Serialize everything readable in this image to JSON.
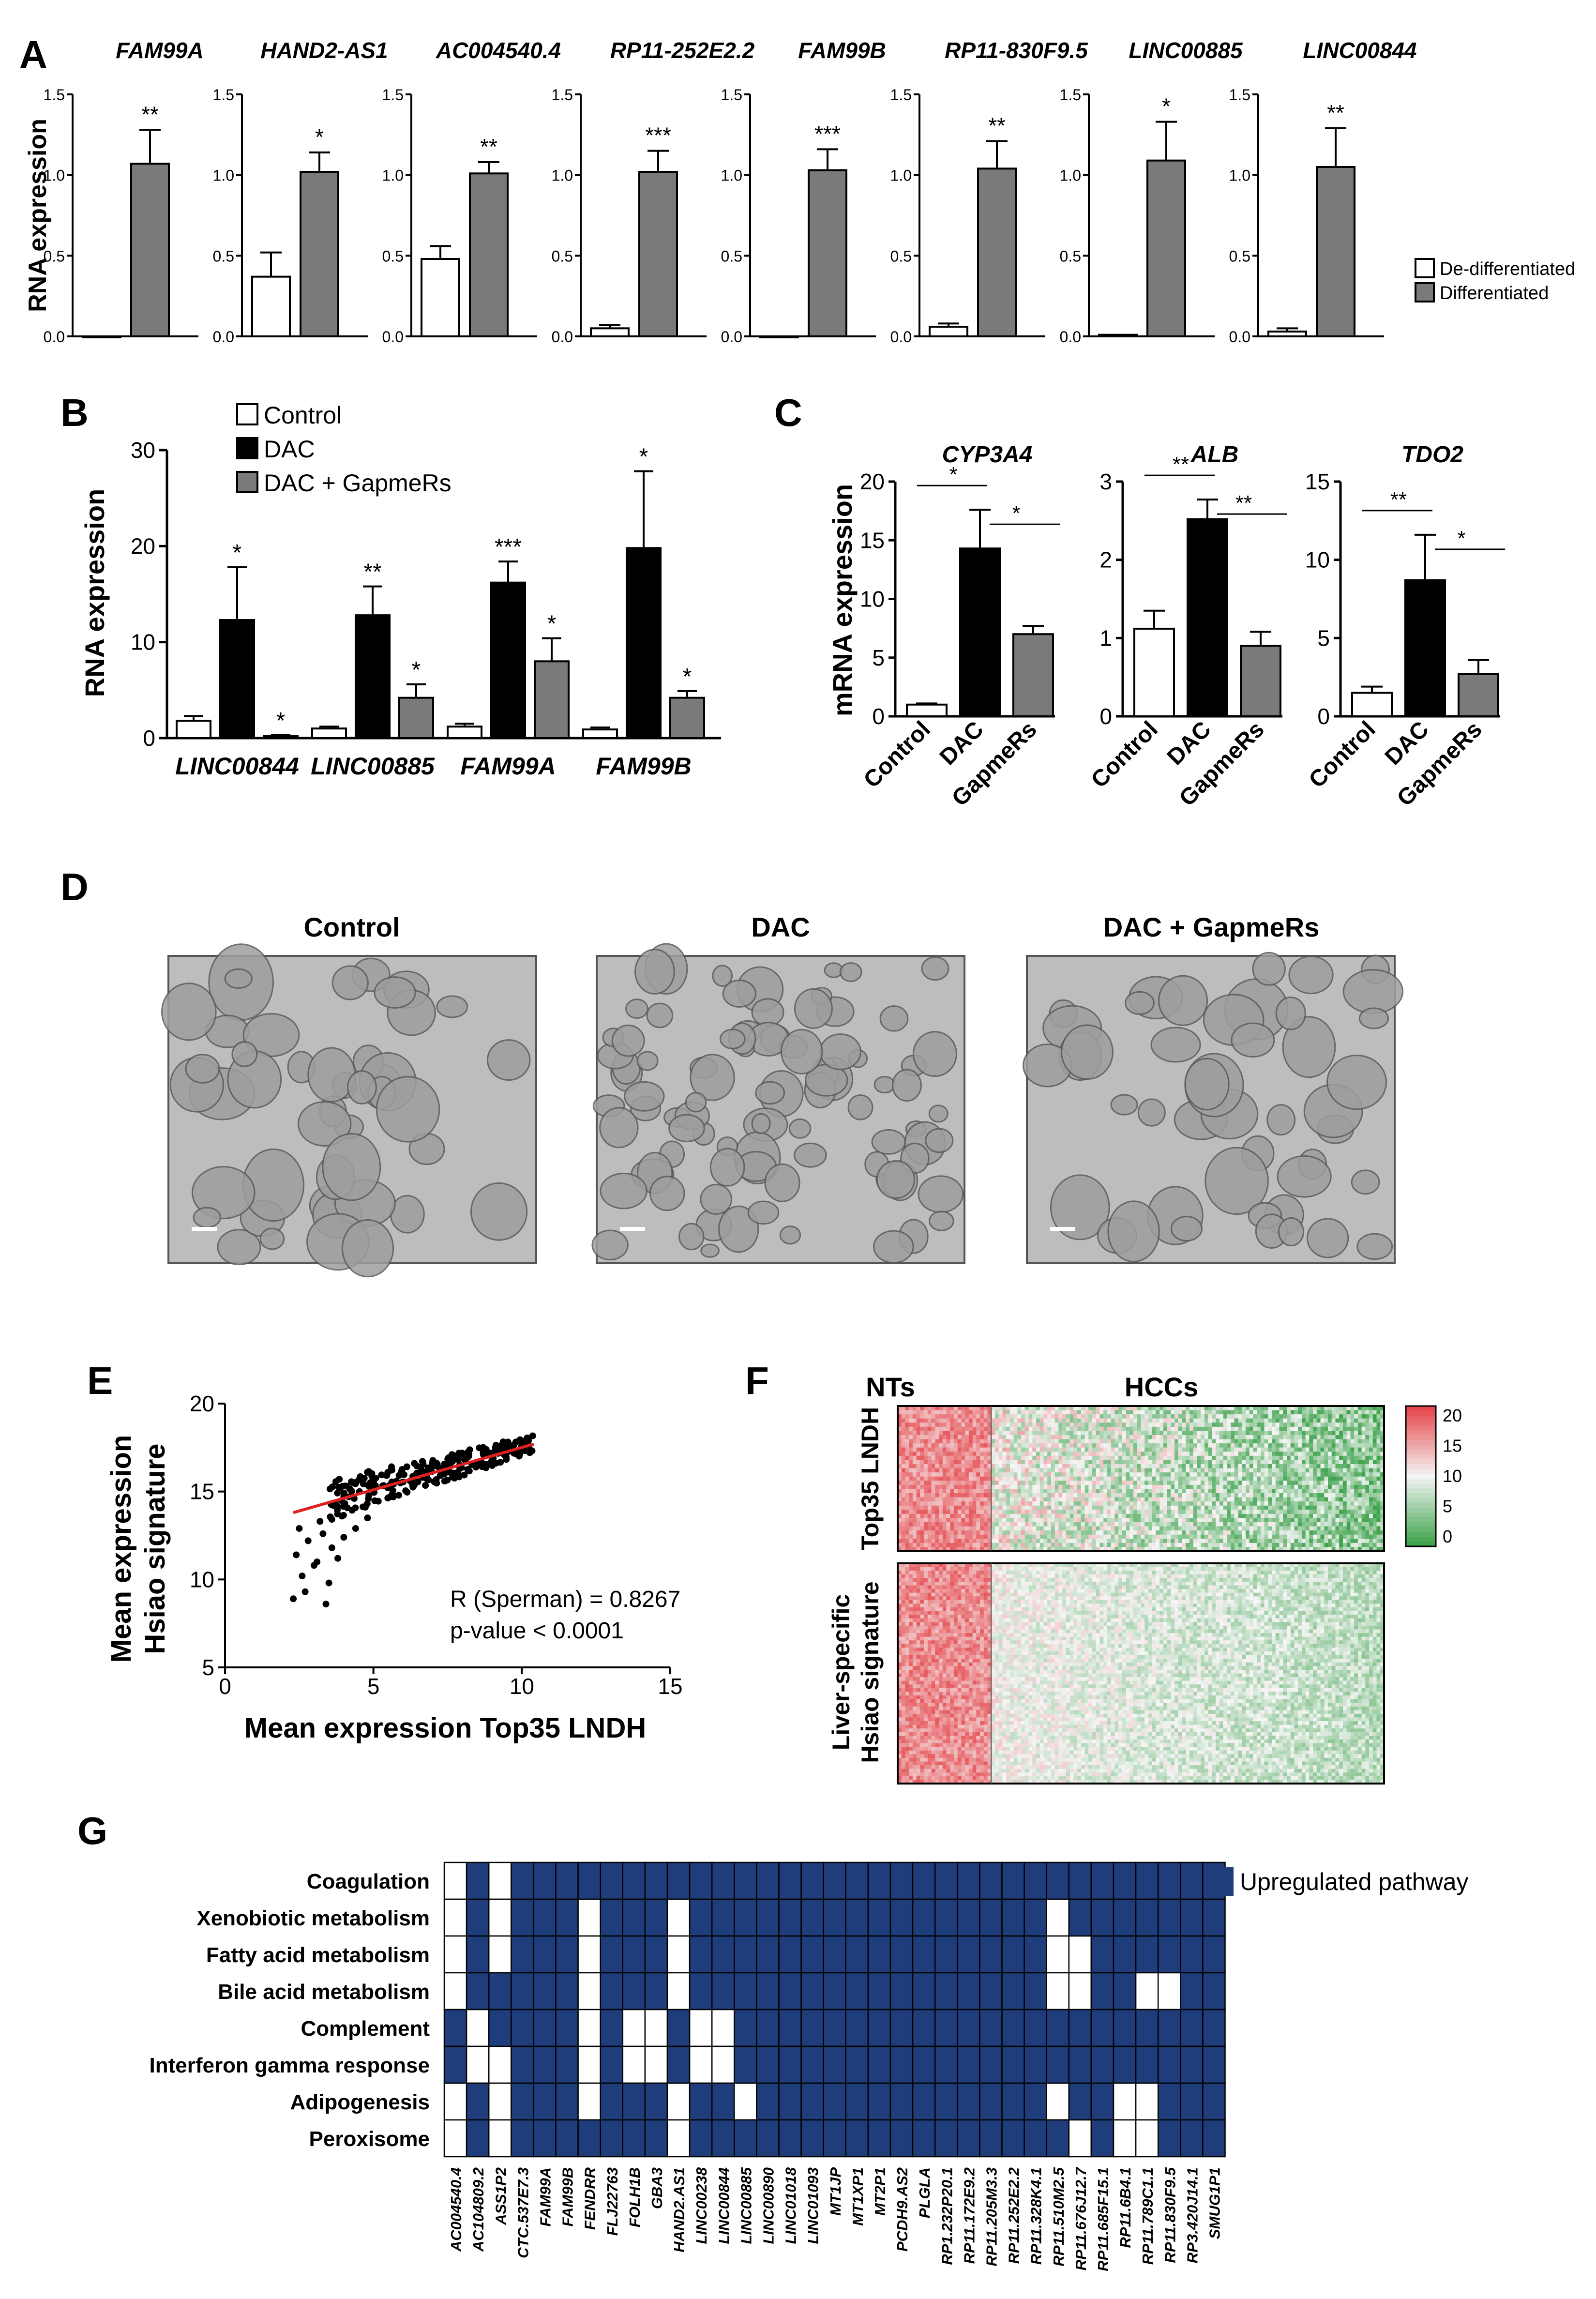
{
  "colors": {
    "white_bar": "#ffffff",
    "black_bar": "#000000",
    "gray_bar": "#7a7a7a",
    "navy": "#1f3d7a",
    "grid_white": "#ffffff",
    "red_line": "#e02020",
    "heat_hi": "#e5484d",
    "heat_mid": "#f5f5f5",
    "heat_lo": "#3fa34d",
    "photo_bg": "#bdbdbd",
    "photo_dark": "#5a5a5a"
  },
  "panel_letters": {
    "a": "A",
    "b": "B",
    "c": "C",
    "d": "D",
    "e": "E",
    "f": "F",
    "g": "G"
  },
  "chart_data": [
    {
      "id": "A",
      "type": "bar",
      "ylabel": "RNA expression",
      "ylim": [
        0,
        1.5
      ],
      "yticks": [
        "0.0",
        "0.5",
        "1.0",
        "1.5"
      ],
      "legend": [
        "De-differentiated",
        "Differentiated"
      ],
      "legend_position": "right",
      "subplots": [
        {
          "title": "FAM99A",
          "values": [
            0.0,
            1.07
          ],
          "errors": [
            0.0,
            0.21
          ],
          "sig": "**"
        },
        {
          "title": "HAND2-AS1",
          "values": [
            0.37,
            1.02
          ],
          "errors": [
            0.15,
            0.12
          ],
          "sig": "*"
        },
        {
          "title": "AC004540.4",
          "values": [
            0.48,
            1.01
          ],
          "errors": [
            0.08,
            0.07
          ],
          "sig": "**"
        },
        {
          "title": "RP11-252E2.2",
          "values": [
            0.05,
            1.02
          ],
          "errors": [
            0.02,
            0.13
          ],
          "sig": "***"
        },
        {
          "title": "FAM99B",
          "values": [
            0.0,
            1.03
          ],
          "errors": [
            0.0,
            0.13
          ],
          "sig": "***"
        },
        {
          "title": "RP11-830F9.5",
          "values": [
            0.06,
            1.04
          ],
          "errors": [
            0.02,
            0.17
          ],
          "sig": "**"
        },
        {
          "title": "LINC00885",
          "values": [
            0.01,
            1.09
          ],
          "errors": [
            0.0,
            0.24
          ],
          "sig": "*"
        },
        {
          "title": "LINC00844",
          "values": [
            0.03,
            1.05
          ],
          "errors": [
            0.02,
            0.24
          ],
          "sig": "**"
        }
      ]
    },
    {
      "id": "B",
      "type": "bar",
      "ylabel": "RNA expression",
      "ylim": [
        0,
        30
      ],
      "yticks": [
        "0",
        "10",
        "20",
        "30"
      ],
      "legend": [
        "Control",
        "DAC",
        "DAC + GapmeRs"
      ],
      "legend_position": "top-left",
      "categories": [
        "LINC00844",
        "LINC00885",
        "FAM99A",
        "FAM99B"
      ],
      "series": [
        {
          "name": "Control",
          "values": [
            1.8,
            1.0,
            1.2,
            0.9
          ],
          "errors": [
            0.5,
            0.2,
            0.3,
            0.2
          ],
          "sig": [
            "",
            "",
            "",
            ""
          ]
        },
        {
          "name": "DAC",
          "values": [
            12.3,
            12.8,
            16.2,
            19.8
          ],
          "errors": [
            5.5,
            3.0,
            2.2,
            8.0
          ],
          "sig": [
            "*",
            "**",
            "***",
            "*"
          ]
        },
        {
          "name": "DAC + GapmeRs",
          "values": [
            0.2,
            4.2,
            8.0,
            4.2
          ],
          "errors": [
            0.1,
            1.4,
            2.4,
            0.7
          ],
          "sig": [
            "*",
            "*",
            "*",
            "*"
          ]
        }
      ]
    },
    {
      "id": "C",
      "type": "bar",
      "ylabel": "mRNA expression",
      "categories": [
        "Control",
        "DAC",
        "GapmeRs"
      ],
      "subplots": [
        {
          "title": "CYP3A4",
          "ylim": [
            0,
            20
          ],
          "yticks": [
            "0",
            "5",
            "10",
            "15",
            "20"
          ],
          "values": [
            1.0,
            14.3,
            7.0
          ],
          "errors": [
            0.1,
            3.3,
            0.7
          ],
          "sig": [
            "*",
            "*"
          ]
        },
        {
          "title": "ALB",
          "ylim": [
            0,
            3
          ],
          "yticks": [
            "0",
            "1",
            "2",
            "3"
          ],
          "values": [
            1.12,
            2.52,
            0.9
          ],
          "errors": [
            0.23,
            0.25,
            0.18
          ],
          "sig": [
            "**",
            "**"
          ]
        },
        {
          "title": "TDO2",
          "ylim": [
            0,
            15
          ],
          "yticks": [
            "0",
            "5",
            "10",
            "15"
          ],
          "values": [
            1.5,
            8.7,
            2.7
          ],
          "errors": [
            0.4,
            2.9,
            0.9
          ],
          "sig": [
            "**",
            "*"
          ]
        }
      ]
    },
    {
      "id": "E",
      "type": "scatter",
      "xlabel": "Mean expression Top35 LNDH",
      "ylabel_lines": [
        "Mean expression",
        "Hsiao signature"
      ],
      "xlim": [
        0,
        15
      ],
      "ylim": [
        5,
        20
      ],
      "xticks": [
        "0",
        "5",
        "10",
        "15"
      ],
      "yticks": [
        "5",
        "10",
        "15",
        "20"
      ],
      "annotation_lines": [
        "R (Sperman) = 0.8267",
        "p-value < 0.0001"
      ],
      "trend": [
        [
          2.3,
          13.8
        ],
        [
          10.4,
          17.7
        ]
      ],
      "outliers": [
        [
          2.3,
          8.9
        ],
        [
          2.7,
          9.3
        ],
        [
          3.4,
          8.6
        ],
        [
          2.6,
          10.2
        ],
        [
          3.0,
          10.8
        ],
        [
          2.4,
          11.4
        ],
        [
          3.1,
          11.0
        ],
        [
          3.6,
          11.8
        ],
        [
          2.8,
          12.2
        ],
        [
          3.3,
          12.6
        ],
        [
          4.0,
          12.4
        ],
        [
          3.8,
          11.2
        ],
        [
          2.5,
          12.9
        ],
        [
          4.4,
          12.9
        ],
        [
          3.2,
          13.3
        ],
        [
          4.8,
          13.5
        ],
        [
          3.5,
          9.8
        ]
      ]
    },
    {
      "id": "F",
      "type": "heatmap",
      "group_labels": [
        "NTs",
        "HCCs"
      ],
      "row_labels": [
        "Top35 LNDH",
        "Liver-specific\nHsiao signature"
      ],
      "row_label_lines": [
        "Top35 LNDH",
        "Liver-specific",
        "Hsiao signature"
      ],
      "scale_ticks": [
        "20",
        "15",
        "10",
        "5",
        "0"
      ],
      "range": [
        0,
        20
      ]
    },
    {
      "id": "G",
      "type": "table",
      "legend": "Upregulated pathway",
      "rows": [
        "Coagulation",
        "Xenobiotic metabolism",
        "Fatty acid metabolism",
        "Bile acid metabolism",
        "Complement",
        "Interferon gamma response",
        "Adipogenesis",
        "Peroxisome"
      ],
      "columns": [
        "AC004540.4",
        "AC104809.2",
        "ASS1P2",
        "CTC.537E7.3",
        "FAM99A",
        "FAM99B",
        "FENDRR",
        "FLJ22763",
        "FOLH1B",
        "GBA3",
        "HAND2.AS1",
        "LINC00238",
        "LINC00844",
        "LINC00885",
        "LINC00890",
        "LINC01018",
        "LINC01093",
        "MT1JP",
        "MT1XP1",
        "MT2P1",
        "PCDH9.AS2",
        "PLGLA",
        "RP1.232P20.1",
        "RP11.172E9.2",
        "RP11.205M3.3",
        "RP11.252E2.2",
        "RP11.328K4.1",
        "RP11.510M2.5",
        "RP11.676J12.7",
        "RP11.685F15.1",
        "RP11.6B4.1",
        "RP11.789C1.1",
        "RP11.830F9.5",
        "RP3.420J14.1",
        "SMUG1P1"
      ],
      "matrix": [
        [
          0,
          1,
          0,
          1,
          1,
          1,
          1,
          1,
          1,
          1,
          1,
          1,
          1,
          1,
          1,
          1,
          1,
          1,
          1,
          1,
          1,
          1,
          1,
          1,
          1,
          1,
          1,
          1,
          1,
          1,
          1,
          1,
          1,
          1,
          1
        ],
        [
          0,
          1,
          0,
          1,
          1,
          1,
          0,
          1,
          1,
          1,
          0,
          1,
          1,
          1,
          1,
          1,
          1,
          1,
          1,
          1,
          1,
          1,
          1,
          1,
          1,
          1,
          1,
          0,
          1,
          1,
          1,
          1,
          1,
          1,
          1
        ],
        [
          0,
          1,
          0,
          1,
          1,
          1,
          0,
          1,
          1,
          1,
          0,
          1,
          1,
          1,
          1,
          1,
          1,
          1,
          1,
          1,
          1,
          1,
          1,
          1,
          1,
          1,
          1,
          0,
          0,
          1,
          1,
          1,
          1,
          1,
          1
        ],
        [
          0,
          1,
          1,
          1,
          1,
          1,
          0,
          1,
          1,
          1,
          0,
          1,
          1,
          1,
          1,
          1,
          1,
          1,
          1,
          1,
          1,
          1,
          1,
          1,
          1,
          1,
          1,
          0,
          0,
          1,
          1,
          0,
          0,
          1,
          1
        ],
        [
          1,
          0,
          1,
          1,
          1,
          1,
          0,
          1,
          0,
          0,
          1,
          0,
          0,
          1,
          1,
          1,
          1,
          1,
          1,
          1,
          1,
          1,
          1,
          1,
          1,
          1,
          1,
          1,
          1,
          1,
          1,
          1,
          1,
          1,
          1
        ],
        [
          1,
          0,
          0,
          1,
          1,
          1,
          0,
          1,
          0,
          0,
          1,
          0,
          0,
          1,
          1,
          1,
          1,
          1,
          1,
          1,
          1,
          1,
          1,
          1,
          1,
          1,
          1,
          1,
          1,
          1,
          1,
          1,
          1,
          1,
          1
        ],
        [
          0,
          1,
          0,
          1,
          1,
          1,
          0,
          1,
          1,
          1,
          0,
          1,
          1,
          0,
          1,
          1,
          1,
          1,
          1,
          1,
          1,
          1,
          1,
          1,
          1,
          1,
          1,
          0,
          1,
          1,
          0,
          0,
          1,
          1,
          1
        ],
        [
          0,
          1,
          0,
          1,
          1,
          1,
          1,
          1,
          1,
          1,
          0,
          1,
          1,
          1,
          1,
          1,
          1,
          1,
          1,
          1,
          1,
          1,
          1,
          1,
          1,
          1,
          1,
          1,
          0,
          1,
          0,
          0,
          1,
          1,
          1
        ]
      ]
    }
  ],
  "photos": {
    "titles": [
      "Control",
      "DAC",
      "DAC + GapmeRs"
    ]
  }
}
